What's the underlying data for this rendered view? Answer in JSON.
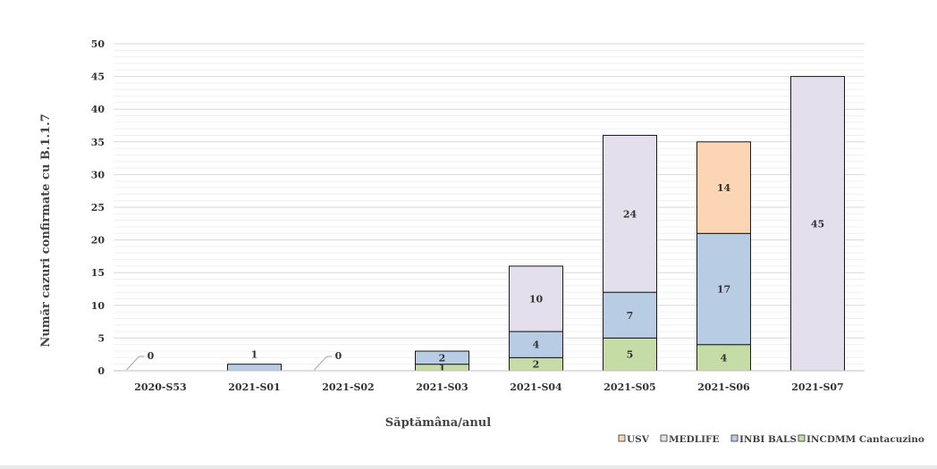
{
  "chart_data": {
    "type": "bar",
    "stacked": true,
    "title": "",
    "xlabel": "Săptămâna/anul",
    "ylabel": "Număr cazuri confirmate  cu B.1.1.7",
    "ylim": [
      0,
      50
    ],
    "yticks": [
      0,
      5,
      10,
      15,
      20,
      25,
      30,
      35,
      40,
      45,
      50
    ],
    "grid": true,
    "legend_position": "bottom-right",
    "categories": [
      "2020-S53",
      "2021-S01",
      "2021-S02",
      "2021-S03",
      "2021-S04",
      "2021-S05",
      "2021-S06",
      "2021-S07"
    ],
    "series": [
      {
        "name": "INCDMM Cantacuzino",
        "color": "#c6dca7",
        "values": [
          0,
          0,
          0,
          1,
          2,
          5,
          4,
          0
        ],
        "labels": [
          "",
          "",
          "",
          "1",
          "2",
          "5",
          "4",
          ""
        ]
      },
      {
        "name": "INBI BALS",
        "color": "#b8cce4",
        "values": [
          0,
          1,
          0,
          2,
          4,
          7,
          17,
          0
        ],
        "labels": [
          "",
          "",
          "",
          "2",
          "4",
          "7",
          "17",
          ""
        ]
      },
      {
        "name": "MEDLIFE",
        "color": "#e4dfec",
        "values": [
          0,
          0,
          0,
          0,
          10,
          24,
          0,
          45
        ],
        "labels": [
          "",
          "",
          "",
          "",
          "10",
          "24",
          "",
          "45"
        ]
      },
      {
        "name": "USV",
        "color": "#fcd5b4",
        "values": [
          0,
          0,
          0,
          0,
          0,
          0,
          14,
          0
        ],
        "labels": [
          "",
          "",
          "",
          "",
          "",
          "",
          "14",
          ""
        ]
      }
    ],
    "totals_labels": [
      "0",
      "1",
      "0",
      "",
      "",
      "",
      "",
      ""
    ],
    "legend": [
      "USV",
      "MEDLIFE",
      "INBI BALS",
      "INCDMM Cantacuzino"
    ]
  }
}
